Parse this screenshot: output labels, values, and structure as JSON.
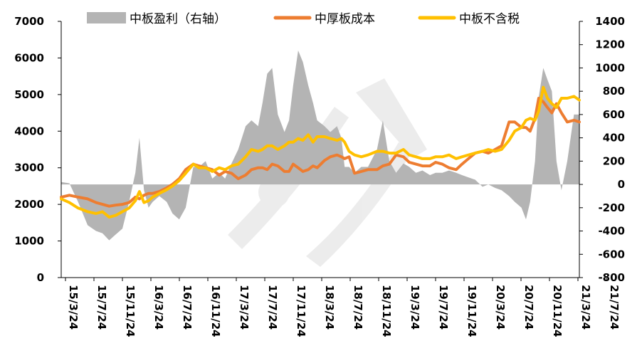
{
  "chart_data": {
    "type": "line",
    "title": "",
    "legend": {
      "placement": "top",
      "entries": [
        {
          "label": "中板盈利（右轴）",
          "kind": "area",
          "color": "#b4b4b4"
        },
        {
          "label": "中厚板成本",
          "kind": "line",
          "color": "#ed7d31"
        },
        {
          "label": "中板不含税",
          "kind": "line",
          "color": "#ffc000"
        }
      ]
    },
    "x_axis": {
      "type": "date",
      "range": [
        "2015-03-24",
        "2021-10-15"
      ],
      "tick_labels": [
        "15/3/24",
        "15/7/24",
        "15/11/24",
        "16/3/24",
        "16/7/24",
        "16/11/24",
        "17/3/24",
        "17/7/24",
        "17/11/24",
        "18/3/24",
        "18/7/24",
        "18/11/24",
        "19/3/24",
        "19/7/24",
        "19/11/24",
        "20/3/24",
        "20/7/24",
        "20/11/24",
        "21/3/24",
        "21/7/24"
      ]
    },
    "y_left": {
      "range": [
        0,
        7000
      ],
      "ticks": [
        0,
        1000,
        2000,
        3000,
        4000,
        5000,
        6000,
        7000
      ],
      "tick_labels": [
        "0",
        "1000",
        "2000",
        "3000",
        "4000",
        "5000",
        "6000",
        "7000"
      ]
    },
    "y_right": {
      "range": [
        -800,
        1400
      ],
      "ticks": [
        -800,
        -600,
        -400,
        -200,
        0,
        200,
        400,
        600,
        800,
        1000,
        1200,
        1400
      ],
      "tick_labels": [
        "-800",
        "-600",
        "-400",
        "-200",
        "0",
        "200",
        "400",
        "600",
        "800",
        "1000",
        "1200",
        "1400"
      ]
    },
    "grid": false,
    "series": [
      {
        "name": "中板盈利（右轴）",
        "type": "area",
        "axis": "right",
        "color": "#b4b4b4",
        "x": [
          "2015-03-24",
          "2015-05-01",
          "2015-06-10",
          "2015-07-24",
          "2015-09-01",
          "2015-10-01",
          "2015-11-01",
          "2015-12-01",
          "2016-01-01",
          "2016-02-01",
          "2016-03-01",
          "2016-03-20",
          "2016-04-10",
          "2016-05-01",
          "2016-05-20",
          "2016-06-20",
          "2016-07-24",
          "2016-08-20",
          "2016-09-20",
          "2016-10-20",
          "2016-11-24",
          "2016-12-20",
          "2017-01-20",
          "2017-02-20",
          "2017-03-24",
          "2017-04-20",
          "2017-05-20",
          "2017-06-20",
          "2017-07-24",
          "2017-08-20",
          "2017-09-20",
          "2017-10-10",
          "2017-11-01",
          "2017-11-24",
          "2017-12-20",
          "2018-01-20",
          "2018-02-10",
          "2018-03-01",
          "2018-03-24",
          "2018-04-15",
          "2018-05-10",
          "2018-06-01",
          "2018-06-20",
          "2018-07-24",
          "2018-08-20",
          "2018-09-20",
          "2018-10-10",
          "2018-10-25",
          "2018-11-15",
          "2018-12-10",
          "2019-01-10",
          "2019-02-10",
          "2019-03-24",
          "2019-04-20",
          "2019-05-20",
          "2019-06-20",
          "2019-07-24",
          "2019-08-20",
          "2019-09-20",
          "2019-10-20",
          "2019-11-24",
          "2019-12-20",
          "2020-01-20",
          "2020-02-20",
          "2020-03-24",
          "2020-04-20",
          "2020-05-20",
          "2020-06-20",
          "2020-07-24",
          "2020-08-20",
          "2020-09-20",
          "2020-10-20",
          "2020-11-24",
          "2020-12-20",
          "2021-01-20",
          "2021-02-10",
          "2021-03-01",
          "2021-03-24",
          "2021-04-10",
          "2021-05-01",
          "2021-05-20",
          "2021-06-10",
          "2021-07-01",
          "2021-07-24",
          "2021-08-20",
          "2021-09-20",
          "2021-10-15"
        ],
        "values": [
          20,
          10,
          -150,
          -350,
          -400,
          -420,
          -480,
          -430,
          -380,
          -150,
          100,
          400,
          -50,
          -200,
          -150,
          -100,
          -150,
          -250,
          -300,
          -200,
          150,
          150,
          200,
          50,
          100,
          50,
          180,
          300,
          500,
          550,
          500,
          700,
          950,
          1000,
          600,
          450,
          550,
          850,
          1150,
          1050,
          850,
          700,
          550,
          500,
          450,
          500,
          400,
          150,
          150,
          100,
          150,
          150,
          300,
          550,
          200,
          100,
          180,
          150,
          100,
          120,
          80,
          100,
          100,
          120,
          100,
          80,
          60,
          40,
          -20,
          0,
          -30,
          -50,
          -100,
          -150,
          -200,
          -300,
          -150,
          200,
          750,
          1000,
          900,
          800,
          200,
          -50,
          200,
          600,
          600
        ]
      },
      {
        "name": "中厚板成本",
        "type": "line",
        "axis": "left",
        "color": "#ed7d31",
        "x": [
          "2015-03-24",
          "2015-05-01",
          "2015-06-10",
          "2015-07-24",
          "2015-09-01",
          "2015-10-01",
          "2015-11-01",
          "2015-12-01",
          "2016-01-01",
          "2016-02-01",
          "2016-03-01",
          "2016-03-20",
          "2016-04-10",
          "2016-05-01",
          "2016-05-20",
          "2016-06-20",
          "2016-07-24",
          "2016-08-20",
          "2016-09-20",
          "2016-10-20",
          "2016-11-24",
          "2016-12-20",
          "2017-01-20",
          "2017-02-20",
          "2017-03-24",
          "2017-04-20",
          "2017-05-20",
          "2017-06-20",
          "2017-07-24",
          "2017-08-20",
          "2017-09-20",
          "2017-10-10",
          "2017-11-01",
          "2017-11-24",
          "2017-12-20",
          "2018-01-20",
          "2018-02-10",
          "2018-03-01",
          "2018-03-24",
          "2018-04-15",
          "2018-05-10",
          "2018-06-01",
          "2018-06-20",
          "2018-07-24",
          "2018-08-20",
          "2018-09-20",
          "2018-10-10",
          "2018-10-25",
          "2018-11-15",
          "2018-12-10",
          "2019-01-10",
          "2019-02-10",
          "2019-03-24",
          "2019-04-20",
          "2019-05-20",
          "2019-06-20",
          "2019-07-24",
          "2019-08-20",
          "2019-09-20",
          "2019-10-20",
          "2019-11-24",
          "2019-12-20",
          "2020-01-20",
          "2020-02-20",
          "2020-03-24",
          "2020-04-20",
          "2020-05-20",
          "2020-06-20",
          "2020-07-24",
          "2020-08-20",
          "2020-09-20",
          "2020-10-20",
          "2020-11-24",
          "2020-12-20",
          "2021-01-20",
          "2021-02-10",
          "2021-03-01",
          "2021-03-24",
          "2021-04-10",
          "2021-05-01",
          "2021-05-20",
          "2021-06-10",
          "2021-07-01",
          "2021-07-24",
          "2021-08-20",
          "2021-09-20",
          "2021-10-15"
        ],
        "values": [
          2200,
          2250,
          2200,
          2150,
          2050,
          2000,
          1950,
          1980,
          2000,
          2050,
          2200,
          2150,
          2250,
          2300,
          2300,
          2350,
          2450,
          2550,
          2700,
          2950,
          3100,
          3050,
          3000,
          2950,
          2800,
          2900,
          2850,
          2700,
          2800,
          2950,
          3000,
          3000,
          2950,
          3100,
          3050,
          2900,
          2900,
          3100,
          3000,
          2900,
          2950,
          3050,
          3000,
          3200,
          3300,
          3350,
          3300,
          3250,
          3300,
          2850,
          2900,
          2950,
          2950,
          3050,
          3100,
          3350,
          3300,
          3150,
          3100,
          3050,
          3050,
          3150,
          3100,
          3000,
          2950,
          3100,
          3250,
          3400,
          3450,
          3400,
          3500,
          3600,
          4250,
          4250,
          4100,
          4100,
          4000,
          4350,
          4900,
          4800,
          4650,
          4500,
          4750,
          4500,
          4250,
          4300,
          4250
        ]
      },
      {
        "name": "中板不含税",
        "type": "line",
        "axis": "left",
        "color": "#ffc000",
        "x": [
          "2015-03-24",
          "2015-05-01",
          "2015-06-10",
          "2015-07-24",
          "2015-09-01",
          "2015-10-01",
          "2015-11-01",
          "2015-12-01",
          "2016-01-01",
          "2016-02-01",
          "2016-03-01",
          "2016-03-20",
          "2016-04-10",
          "2016-05-01",
          "2016-05-20",
          "2016-06-20",
          "2016-07-24",
          "2016-08-20",
          "2016-09-20",
          "2016-10-20",
          "2016-11-24",
          "2016-12-20",
          "2017-01-20",
          "2017-02-20",
          "2017-03-24",
          "2017-04-20",
          "2017-05-20",
          "2017-06-20",
          "2017-07-24",
          "2017-08-20",
          "2017-09-20",
          "2017-10-10",
          "2017-11-01",
          "2017-11-24",
          "2017-12-20",
          "2018-01-20",
          "2018-02-10",
          "2018-03-01",
          "2018-03-24",
          "2018-04-15",
          "2018-05-10",
          "2018-06-01",
          "2018-06-20",
          "2018-07-24",
          "2018-08-20",
          "2018-09-20",
          "2018-10-10",
          "2018-10-25",
          "2018-11-15",
          "2018-12-10",
          "2019-01-10",
          "2019-02-10",
          "2019-03-24",
          "2019-04-20",
          "2019-05-20",
          "2019-06-20",
          "2019-07-24",
          "2019-08-20",
          "2019-09-20",
          "2019-10-20",
          "2019-11-24",
          "2019-12-20",
          "2020-01-20",
          "2020-02-20",
          "2020-03-24",
          "2020-04-20",
          "2020-05-20",
          "2020-06-20",
          "2020-07-24",
          "2020-08-20",
          "2020-09-20",
          "2020-10-20",
          "2020-11-24",
          "2020-12-20",
          "2021-01-20",
          "2021-02-10",
          "2021-03-01",
          "2021-03-24",
          "2021-04-10",
          "2021-05-01",
          "2021-05-20",
          "2021-06-10",
          "2021-07-01",
          "2021-07-24",
          "2021-08-20",
          "2021-09-20",
          "2021-10-15"
        ],
        "values": [
          2150,
          2050,
          1900,
          1800,
          1750,
          1800,
          1650,
          1700,
          1800,
          1900,
          2100,
          2350,
          2050,
          2100,
          2200,
          2300,
          2400,
          2500,
          2650,
          2850,
          3100,
          3000,
          3000,
          2900,
          3000,
          2950,
          3050,
          3100,
          3300,
          3500,
          3450,
          3500,
          3600,
          3600,
          3500,
          3600,
          3700,
          3700,
          3800,
          3750,
          3900,
          3700,
          3850,
          3850,
          3800,
          3750,
          3800,
          3700,
          3450,
          3350,
          3300,
          3350,
          3450,
          3450,
          3400,
          3400,
          3500,
          3350,
          3300,
          3250,
          3250,
          3300,
          3300,
          3350,
          3250,
          3300,
          3350,
          3400,
          3450,
          3500,
          3450,
          3500,
          3750,
          4000,
          4100,
          4300,
          4350,
          4300,
          4550,
          5200,
          4900,
          4750,
          4650,
          4900,
          4900,
          4950,
          4850
        ]
      }
    ]
  }
}
